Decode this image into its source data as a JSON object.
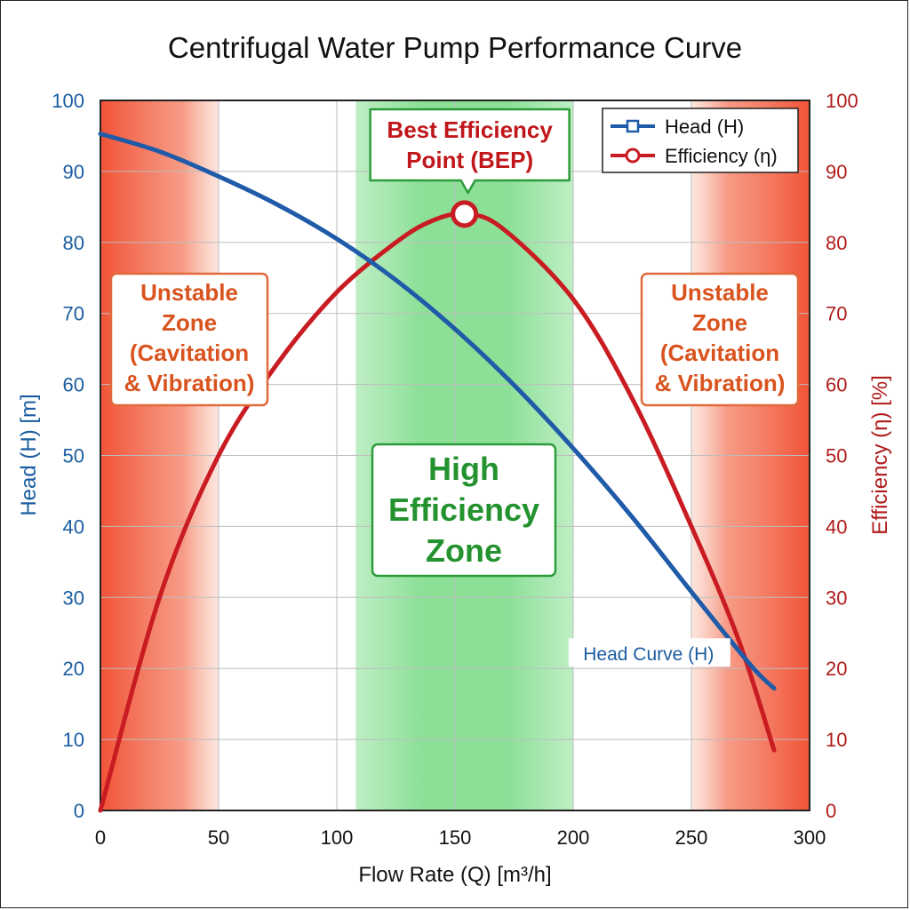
{
  "chart_data": {
    "type": "line",
    "title": "Centrifugal Water Pump Performance Curve",
    "xlabel": "Flow Rate (Q) [m³/h]",
    "ylabel_left": "Head (H) [m]",
    "ylabel_right": "Efficiency (η) [%]",
    "xlim": [
      0,
      300
    ],
    "ylim_left": [
      0,
      100
    ],
    "ylim_right": [
      0,
      100
    ],
    "x_ticks": [
      0,
      50,
      100,
      150,
      200,
      250,
      300
    ],
    "y_ticks": [
      0,
      10,
      20,
      30,
      40,
      50,
      60,
      70,
      80,
      90,
      100
    ],
    "grid": true,
    "legend_position": "top-right",
    "series": [
      {
        "name": "Head (H)",
        "axis": "left",
        "color": "#1f5ba8",
        "marker": "square",
        "x": [
          0,
          25,
          50,
          75,
          100,
          125,
          150,
          175,
          200,
          225,
          250,
          275,
          285
        ],
        "y": [
          95.3,
          92.8,
          89.3,
          85.3,
          80.5,
          74.7,
          67.8,
          59.9,
          51.0,
          41.3,
          30.8,
          20.5,
          17.2
        ]
      },
      {
        "name": "Efficiency (η)",
        "axis": "right",
        "color": "#c91c22",
        "marker": "circle",
        "x": [
          0,
          25,
          50,
          75,
          100,
          125,
          140,
          154,
          170,
          200,
          225,
          250,
          270,
          285
        ],
        "y": [
          0,
          30,
          50,
          63,
          73,
          80,
          83,
          84,
          82,
          72,
          58,
          40,
          24,
          8.5
        ]
      }
    ],
    "bep": {
      "label_line1": "Best Efficiency",
      "label_line2": "Point (BEP)",
      "x": 154,
      "y": 84
    },
    "zones": [
      {
        "kind": "unstable",
        "x_start": 0,
        "x_end": 50,
        "label": [
          "Unstable",
          "Zone",
          "(Cavitation",
          "& Vibration)"
        ]
      },
      {
        "kind": "high",
        "x_start": 108,
        "x_end": 200,
        "label": [
          "High",
          "Efficiency",
          "Zone"
        ]
      },
      {
        "kind": "unstable",
        "x_start": 250,
        "x_end": 300,
        "label": [
          "Unstable",
          "Zone",
          "(Cavitation",
          "& Vibration)"
        ]
      }
    ],
    "annotations": [
      {
        "text": "Head Curve (H)",
        "x": 230,
        "y": 22
      }
    ],
    "colors": {
      "head": "#1f5ba8",
      "efficiency": "#c91c22",
      "unstable": "#f15a3a",
      "high": "#7fdc8b",
      "zone_label": "#d9531e",
      "bep_label": "#c0171b",
      "high_label": "#23922f"
    }
  }
}
